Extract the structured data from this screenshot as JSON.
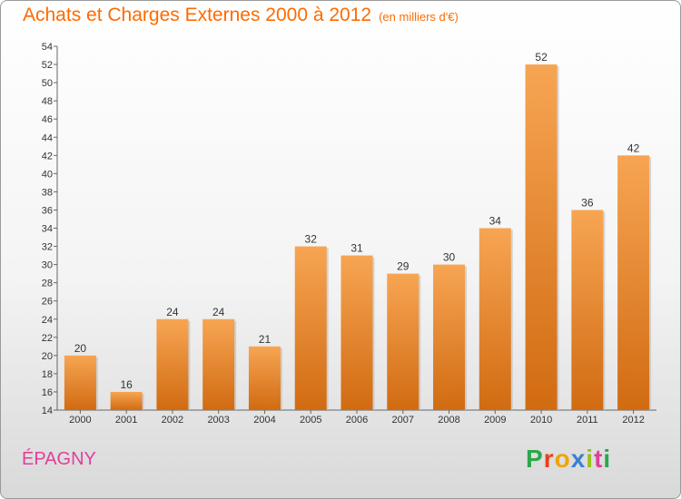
{
  "title": "Achats et Charges Externes 2000 à 2012",
  "unit": "(en milliers d'€)",
  "commune": "ÉPAGNY",
  "logo": "Proxiti",
  "colors": {
    "title": "#ff6a00",
    "commune": "#e0409a",
    "bar_top": "#f7a553",
    "bar_bottom": "#d16b12",
    "logo_letters": [
      "#2aa84a",
      "#e8401c",
      "#f0a400",
      "#3b7fd4",
      "#9bc11b",
      "#e0409a",
      "#2aa84a"
    ]
  },
  "chart_data": {
    "type": "bar",
    "categories": [
      "2000",
      "2001",
      "2002",
      "2003",
      "2004",
      "2005",
      "2006",
      "2007",
      "2008",
      "2009",
      "2010",
      "2011",
      "2012"
    ],
    "values": [
      20,
      16,
      24,
      24,
      21,
      32,
      31,
      29,
      30,
      34,
      52,
      36,
      42
    ],
    "ylim": [
      14,
      54
    ],
    "yticks": [
      14,
      16,
      18,
      20,
      22,
      24,
      26,
      28,
      30,
      32,
      34,
      36,
      38,
      40,
      42,
      44,
      46,
      48,
      50,
      52,
      54
    ],
    "xlabel": "",
    "ylabel": "",
    "grid": false,
    "data_labels": true
  }
}
